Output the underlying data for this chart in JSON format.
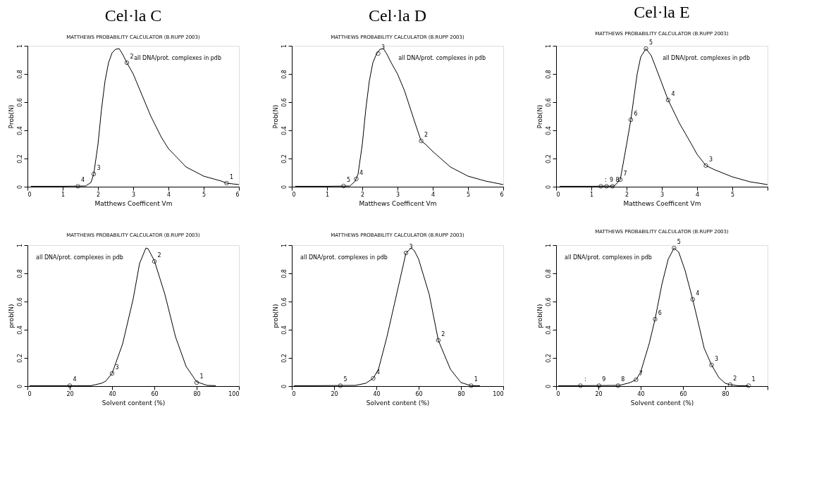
{
  "chart_data": [
    {
      "type": "line",
      "title": "Cel·la C",
      "subtitle": "MATTHEWS PROBABILITY CALCULATOR (B.RUPP 2003)",
      "xlabel": "Matthews Coefficent Vm",
      "ylabel": "Prob(N)",
      "xlim": [
        0,
        6
      ],
      "xticks": [
        0,
        1,
        2,
        3,
        4,
        5,
        6
      ],
      "ylim": [
        0,
        1
      ],
      "yticks": [
        0,
        0.2,
        0.4,
        0.6,
        0.8,
        1
      ],
      "annotations": [
        "all DNA/prot. complexes in pdb",
        {
          "text": "4",
          "x": 1.43,
          "y": 0.003
        },
        {
          "text": "3",
          "x": 1.88,
          "y": 0.09
        },
        {
          "text": "2",
          "x": 2.82,
          "y": 0.88
        },
        {
          "text": "1",
          "x": 5.65,
          "y": 0.025
        }
      ],
      "series": [
        {
          "color": "#000000",
          "x": [
            0.1,
            1.0,
            1.65,
            1.8,
            1.88,
            2.0,
            2.1,
            2.2,
            2.3,
            2.4,
            2.5,
            2.6,
            2.7,
            2.82,
            3.0,
            3.2,
            3.5,
            3.8,
            4.0,
            4.5,
            5.0,
            5.5,
            5.65,
            6.0
          ],
          "values": [
            0.003,
            0.003,
            0.005,
            0.03,
            0.09,
            0.3,
            0.55,
            0.75,
            0.88,
            0.95,
            0.975,
            0.98,
            0.94,
            0.88,
            0.8,
            0.68,
            0.5,
            0.35,
            0.27,
            0.14,
            0.075,
            0.04,
            0.025,
            0.015
          ]
        },
        {
          "type": "scatter",
          "color": "#000000",
          "marker": "circle",
          "x": [
            1.43,
            1.88,
            2.82,
            5.65
          ],
          "values": [
            0.003,
            0.09,
            0.88,
            0.025
          ]
        }
      ]
    },
    {
      "type": "line",
      "title": "Cel·la D",
      "subtitle": "MATTHEWS PROBABILITY CALCULATOR (B.RUPP 2003)",
      "xlabel": "Matthews Coefficent Vm",
      "ylabel": "Prob(N)",
      "xlim": [
        0,
        6
      ],
      "xticks": [
        0,
        1,
        2,
        3,
        4,
        5,
        6
      ],
      "ylim": [
        0,
        1
      ],
      "yticks": [
        0,
        0.2,
        0.4,
        0.6,
        0.8,
        1
      ],
      "annotations": [
        "all DNA/prot. complexes in pdb",
        {
          "text": "5",
          "x": 1.47,
          "y": 0.005
        },
        {
          "text": "4",
          "x": 1.83,
          "y": 0.055
        },
        {
          "text": "3",
          "x": 2.45,
          "y": 0.945
        },
        {
          "text": "2",
          "x": 3.67,
          "y": 0.325
        }
      ],
      "series": [
        {
          "color": "#000000",
          "x": [
            0.1,
            1.0,
            1.65,
            1.8,
            1.88,
            2.0,
            2.1,
            2.2,
            2.3,
            2.4,
            2.5,
            2.6,
            2.7,
            2.82,
            3.0,
            3.2,
            3.5,
            3.67,
            3.8,
            4.0,
            4.5,
            5.0,
            5.5,
            6.0
          ],
          "values": [
            0.003,
            0.003,
            0.005,
            0.04,
            0.09,
            0.3,
            0.55,
            0.75,
            0.88,
            0.94,
            0.975,
            0.98,
            0.94,
            0.88,
            0.8,
            0.68,
            0.45,
            0.325,
            0.3,
            0.25,
            0.14,
            0.075,
            0.04,
            0.015
          ]
        },
        {
          "type": "scatter",
          "color": "#000000",
          "marker": "circle",
          "x": [
            1.47,
            1.83,
            2.45,
            3.67
          ],
          "values": [
            0.005,
            0.055,
            0.945,
            0.325
          ]
        }
      ]
    },
    {
      "type": "line",
      "title": "Cel·la E",
      "subtitle": "MATTHEWS PROBABILITY CALCULATOR (B.RUPP 2003)",
      "xlabel": "Matthews Coefficent Vm",
      "ylabel": "Prob(N)",
      "xlim": [
        0,
        6
      ],
      "xticks": [
        0,
        1,
        2,
        3,
        4,
        5,
        {
          "value": 6,
          "label": null
        }
      ],
      "ylim": [
        0,
        1
      ],
      "yticks": [
        0,
        0.2,
        0.4,
        0.6,
        0.8,
        1
      ],
      "annotations": [
        "all DNA/prot. complexes in pdb",
        {
          "text": ":",
          "x": 1.27,
          "y": 0.003
        },
        {
          "text": "9",
          "x": 1.43,
          "y": 0.003
        },
        {
          "text": "8",
          "x": 1.6,
          "y": 0.003
        },
        {
          "text": "7",
          "x": 1.82,
          "y": 0.05
        },
        {
          "text": "6",
          "x": 2.12,
          "y": 0.475
        },
        {
          "text": "5",
          "x": 2.55,
          "y": 0.98
        },
        {
          "text": "4",
          "x": 3.18,
          "y": 0.615
        },
        {
          "text": "3",
          "x": 4.25,
          "y": 0.15
        }
      ],
      "series": [
        {
          "color": "#000000",
          "x": [
            0.1,
            1.0,
            1.65,
            1.82,
            2.0,
            2.12,
            2.2,
            2.3,
            2.4,
            2.55,
            2.7,
            2.9,
            3.18,
            3.5,
            3.8,
            4.0,
            4.25,
            4.5,
            5.0,
            5.5,
            6.0
          ],
          "values": [
            0.003,
            0.003,
            0.005,
            0.05,
            0.3,
            0.475,
            0.62,
            0.8,
            0.92,
            0.98,
            0.93,
            0.8,
            0.615,
            0.45,
            0.32,
            0.23,
            0.15,
            0.12,
            0.07,
            0.035,
            0.015
          ]
        },
        {
          "type": "scatter",
          "color": "#000000",
          "marker": "circle",
          "x": [
            1.27,
            1.43,
            1.6,
            1.82,
            2.12,
            2.55,
            3.18,
            4.25
          ],
          "values": [
            0.003,
            0.003,
            0.003,
            0.05,
            0.475,
            0.98,
            0.615,
            0.15
          ]
        }
      ]
    },
    {
      "type": "line",
      "title": "MATTHEWS PROBABILITY CALCULATOR (B.RUPP 2003)",
      "xlabel": "Solvent content (%)",
      "ylabel": "prob(N)",
      "xlim": [
        0,
        100
      ],
      "xticks": [
        0,
        20,
        40,
        60,
        80,
        100
      ],
      "ylim": [
        0,
        1
      ],
      "yticks": [
        0,
        0.2,
        0.4,
        0.6,
        0.8,
        1
      ],
      "annotations": [
        "all DNA/prot. complexes in pdb",
        {
          "text": "4",
          "x": 20,
          "y": 0.003
        },
        {
          "text": "3",
          "x": 40,
          "y": 0.09
        },
        {
          "text": "2",
          "x": 60,
          "y": 0.885
        },
        {
          "text": "1",
          "x": 80,
          "y": 0.025
        }
      ],
      "series": [
        {
          "color": "#000000",
          "x": [
            1,
            10,
            30,
            35,
            37,
            40,
            45,
            50,
            53,
            56,
            57,
            60,
            65,
            70,
            75,
            80,
            85,
            89
          ],
          "values": [
            0.003,
            0.003,
            0.003,
            0.02,
            0.035,
            0.09,
            0.3,
            0.62,
            0.87,
            0.98,
            0.975,
            0.89,
            0.65,
            0.35,
            0.14,
            0.03,
            0.005,
            0.003
          ]
        },
        {
          "type": "scatter",
          "color": "#000000",
          "marker": "circle",
          "x": [
            20,
            40,
            60,
            80
          ],
          "values": [
            0.003,
            0.09,
            0.885,
            0.025
          ]
        }
      ]
    },
    {
      "type": "line",
      "title": "MATTHEWS PROBABILITY CALCULATOR (B.RUPP 2003)",
      "xlabel": "Solvent content (%)",
      "ylabel": "prob(N)",
      "xlim": [
        0,
        100
      ],
      "xticks": [
        0,
        20,
        40,
        60,
        80,
        100
      ],
      "ylim": [
        0,
        1
      ],
      "yticks": [
        0,
        0.2,
        0.4,
        0.6,
        0.8,
        1
      ],
      "annotations": [
        "all DNA/prot. complexes in pdb",
        {
          "text": "5",
          "x": 23,
          "y": 0.003
        },
        {
          "text": "4",
          "x": 38.5,
          "y": 0.055
        },
        {
          "text": "3",
          "x": 54,
          "y": 0.945
        },
        {
          "text": "2",
          "x": 69.3,
          "y": 0.325
        },
        {
          "text": "1",
          "x": 84.8,
          "y": 0.003
        }
      ],
      "series": [
        {
          "color": "#000000",
          "x": [
            1,
            10,
            30,
            35,
            38.5,
            41,
            45,
            50,
            54,
            56.5,
            58,
            60,
            65,
            69.3,
            75,
            80,
            84.8,
            89
          ],
          "values": [
            0.003,
            0.003,
            0.005,
            0.02,
            0.055,
            0.12,
            0.35,
            0.68,
            0.945,
            0.98,
            0.96,
            0.9,
            0.65,
            0.325,
            0.12,
            0.025,
            0.003,
            0.003
          ]
        },
        {
          "type": "scatter",
          "color": "#000000",
          "marker": "circle",
          "x": [
            23,
            38.5,
            54,
            69.3,
            84.8
          ],
          "values": [
            0.003,
            0.055,
            0.945,
            0.325,
            0.003
          ]
        }
      ]
    },
    {
      "type": "line",
      "title": "MATTHEWS PROBABILITY CALCULATOR (B.RUPP 2003)",
      "xlabel": "Solvent content (%)",
      "ylabel": "prob(N)",
      "xlim": [
        0,
        100
      ],
      "xticks": [
        0,
        20,
        40,
        60,
        80,
        {
          "value": 100,
          "label": null
        }
      ],
      "ylim": [
        0,
        1
      ],
      "yticks": [
        0,
        0.2,
        0.4,
        0.6,
        0.8,
        1
      ],
      "annotations": [
        "all DNA/prot. complexes in pdb",
        {
          "text": ":",
          "x": 11.5,
          "y": 0.003
        },
        {
          "text": "9",
          "x": 20.3,
          "y": 0.003
        },
        {
          "text": "8",
          "x": 29.3,
          "y": 0.003
        },
        {
          "text": "7",
          "x": 37.8,
          "y": 0.045
        },
        {
          "text": "6",
          "x": 46.8,
          "y": 0.475
        },
        {
          "text": "5",
          "x": 55.8,
          "y": 0.98
        },
        {
          "text": "4",
          "x": 64.6,
          "y": 0.615
        },
        {
          "text": "3",
          "x": 73.5,
          "y": 0.15
        },
        {
          "text": "2",
          "x": 82.3,
          "y": 0.01
        },
        {
          "text": "1",
          "x": 91,
          "y": 0.003
        }
      ],
      "series": [
        {
          "color": "#000000",
          "x": [
            1,
            10,
            30,
            35,
            37.8,
            40,
            44,
            46.8,
            50,
            53,
            55.8,
            58,
            61,
            64.6,
            68,
            70,
            73.5,
            77,
            80,
            82.3,
            86,
            91
          ],
          "values": [
            0.003,
            0.003,
            0.005,
            0.025,
            0.045,
            0.1,
            0.3,
            0.475,
            0.72,
            0.9,
            0.98,
            0.95,
            0.82,
            0.615,
            0.4,
            0.27,
            0.15,
            0.06,
            0.02,
            0.01,
            0.003,
            0.003
          ]
        },
        {
          "type": "scatter",
          "color": "#000000",
          "marker": "circle",
          "x": [
            11.5,
            20.3,
            29.3,
            37.8,
            46.8,
            55.8,
            64.6,
            73.5,
            82.3,
            91
          ],
          "values": [
            0.003,
            0.003,
            0.003,
            0.045,
            0.475,
            0.98,
            0.615,
            0.15,
            0.01,
            0.003
          ]
        }
      ]
    }
  ]
}
